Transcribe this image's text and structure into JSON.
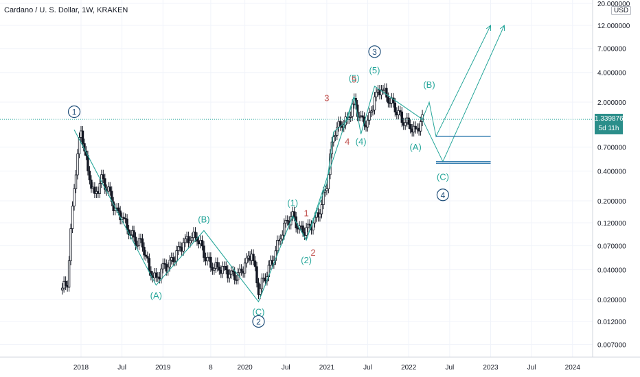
{
  "chart_data": {
    "type": "candlestick",
    "title": "Cardano / U. S. Dollar, 1W, KRAKEN",
    "currency": "USD",
    "last_price": "1.339876",
    "countdown": "5d 11h",
    "y_scale": "log",
    "y_ticks": [
      "20.000000",
      "12.000000",
      "7.000000",
      "4.000000",
      "2.000000",
      "0.700000",
      "0.400000",
      "0.200000",
      "0.120000",
      "0.070000",
      "0.040000",
      "0.020000",
      "0.012000",
      "0.007000"
    ],
    "x_ticks": [
      "2018",
      "Jul",
      "2019",
      "8",
      "2020",
      "Jul",
      "2021",
      "Jul",
      "2022",
      "Jul",
      "2023",
      "Jul",
      "2024"
    ],
    "grid": true,
    "price_series": [
      {
        "date": "2017-10",
        "price": 0.025
      },
      {
        "date": "2017-11",
        "price": 0.03
      },
      {
        "date": "2017-12",
        "price": 0.3
      },
      {
        "date": "2018-01",
        "price": 1.1
      },
      {
        "date": "2018-02",
        "price": 0.4
      },
      {
        "date": "2018-03",
        "price": 0.22
      },
      {
        "date": "2018-04",
        "price": 0.33
      },
      {
        "date": "2018-05",
        "price": 0.25
      },
      {
        "date": "2018-06",
        "price": 0.16
      },
      {
        "date": "2018-07",
        "price": 0.14
      },
      {
        "date": "2018-08",
        "price": 0.1
      },
      {
        "date": "2018-09",
        "price": 0.08
      },
      {
        "date": "2018-10",
        "price": 0.075
      },
      {
        "date": "2018-11",
        "price": 0.04
      },
      {
        "date": "2018-12",
        "price": 0.032
      },
      {
        "date": "2019-01",
        "price": 0.042
      },
      {
        "date": "2019-02",
        "price": 0.045
      },
      {
        "date": "2019-03",
        "price": 0.058
      },
      {
        "date": "2019-04",
        "price": 0.075
      },
      {
        "date": "2019-05",
        "price": 0.085
      },
      {
        "date": "2019-06",
        "price": 0.088
      },
      {
        "date": "2019-07",
        "price": 0.06
      },
      {
        "date": "2019-08",
        "price": 0.045
      },
      {
        "date": "2019-09",
        "price": 0.042
      },
      {
        "date": "2019-10",
        "price": 0.04
      },
      {
        "date": "2019-11",
        "price": 0.035
      },
      {
        "date": "2019-12",
        "price": 0.034
      },
      {
        "date": "2020-01",
        "price": 0.045
      },
      {
        "date": "2020-02",
        "price": 0.06
      },
      {
        "date": "2020-03",
        "price": 0.025
      },
      {
        "date": "2020-04",
        "price": 0.035
      },
      {
        "date": "2020-05",
        "price": 0.05
      },
      {
        "date": "2020-06",
        "price": 0.08
      },
      {
        "date": "2020-07",
        "price": 0.12
      },
      {
        "date": "2020-08",
        "price": 0.14
      },
      {
        "date": "2020-09",
        "price": 0.1
      },
      {
        "date": "2020-10",
        "price": 0.1
      },
      {
        "date": "2020-11",
        "price": 0.12
      },
      {
        "date": "2020-12",
        "price": 0.16
      },
      {
        "date": "2021-01",
        "price": 0.3
      },
      {
        "date": "2021-02",
        "price": 1.0
      },
      {
        "date": "2021-03",
        "price": 1.2
      },
      {
        "date": "2021-04",
        "price": 1.3
      },
      {
        "date": "2021-05",
        "price": 2.0
      },
      {
        "date": "2021-06",
        "price": 1.3
      },
      {
        "date": "2021-07",
        "price": 1.2
      },
      {
        "date": "2021-08",
        "price": 2.2
      },
      {
        "date": "2021-09",
        "price": 2.8
      },
      {
        "date": "2021-10",
        "price": 2.2
      },
      {
        "date": "2021-11",
        "price": 1.8
      },
      {
        "date": "2021-12",
        "price": 1.35
      },
      {
        "date": "2022-01",
        "price": 1.2
      },
      {
        "date": "2022-02",
        "price": 1.0
      },
      {
        "date": "2022-03",
        "price": 1.34
      }
    ],
    "projections": [
      {
        "path": [
          {
            "date": "2022-03",
            "price": 1.34
          },
          {
            "date": "2022-04",
            "price": 2.0
          },
          {
            "date": "2022-05",
            "price": 0.9
          },
          {
            "date": "2023-01",
            "price": 12.0
          }
        ]
      },
      {
        "path": [
          {
            "date": "2022-03",
            "price": 1.34
          },
          {
            "date": "2022-06",
            "price": 0.5
          },
          {
            "date": "2023-03",
            "price": 12.0
          }
        ]
      }
    ],
    "target_levels": [
      0.9,
      0.5,
      0.48
    ],
    "current_price": 1.34,
    "wave_labels": [
      {
        "text": "1",
        "circled": true,
        "color": "#1f4e79",
        "date": "2017-12",
        "price": 1.6
      },
      {
        "text": "(A)",
        "color": "#26a69a",
        "date": "2018-12",
        "price": 0.022
      },
      {
        "text": "(B)",
        "color": "#26a69a",
        "date": "2019-07",
        "price": 0.13
      },
      {
        "text": "(C)",
        "color": "#26a69a",
        "date": "2020-03",
        "price": 0.015
      },
      {
        "text": "2",
        "circled": true,
        "color": "#1f4e79",
        "date": "2020-03",
        "price": 0.012
      },
      {
        "text": "(1)",
        "color": "#26a69a",
        "date": "2020-08",
        "price": 0.19
      },
      {
        "text": "1",
        "color": "#c0504d",
        "date": "2020-10",
        "price": 0.15
      },
      {
        "text": "(2)",
        "color": "#26a69a",
        "date": "2020-10",
        "price": 0.05
      },
      {
        "text": "2",
        "color": "#c0504d",
        "date": "2020-11",
        "price": 0.06
      },
      {
        "text": "3",
        "color": "#c0504d",
        "date": "2021-01",
        "price": 2.2
      },
      {
        "text": "4",
        "color": "#c0504d",
        "date": "2021-04",
        "price": 0.8
      },
      {
        "text": "(5)",
        "color": "#26a69a",
        "date": "2021-05",
        "price": 3.5
      },
      {
        "text": "5",
        "color": "#c0504d",
        "date": "2021-05",
        "price": 3.4
      },
      {
        "text": "(4)",
        "color": "#26a69a",
        "date": "2021-06",
        "price": 0.8
      },
      {
        "text": "3",
        "circled": true,
        "color": "#1f4e79",
        "date": "2021-08",
        "price": 6.5
      },
      {
        "text": "(5)",
        "color": "#26a69a",
        "date": "2021-08",
        "price": 4.2
      },
      {
        "text": "(B)",
        "color": "#26a69a",
        "date": "2022-04",
        "price": 3.0
      },
      {
        "text": "(A)",
        "color": "#26a69a",
        "date": "2022-02",
        "price": 0.7
      },
      {
        "text": "(C)",
        "color": "#26a69a",
        "date": "2022-06",
        "price": 0.35
      },
      {
        "text": "4",
        "circled": true,
        "color": "#1f4e79",
        "date": "2022-06",
        "price": 0.23
      }
    ],
    "colors": {
      "wave_line": "#26a69a",
      "degree_circle": "#1f4e79",
      "sub_wave": "#c0504d",
      "target_line": "#1f6fa6",
      "candle": "#131722",
      "price_line": "#26a69a"
    }
  }
}
